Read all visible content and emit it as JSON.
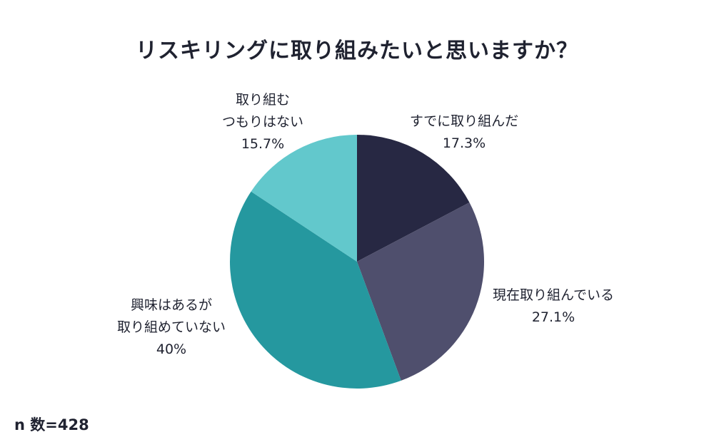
{
  "chart_data": {
    "type": "pie",
    "title": "リスキリングに取り組みたいと思いますか？",
    "slices": [
      {
        "label_lines": [
          "すでに取り組んだ"
        ],
        "value_text": "17.3%",
        "value": 17.3,
        "color": "#272843"
      },
      {
        "label_lines": [
          "現在取り組んでいる"
        ],
        "value_text": "27.1%",
        "value": 27.1,
        "color": "#4f4f6d"
      },
      {
        "label_lines": [
          "興味はあるが",
          "取り組めていない"
        ],
        "value_text": "40%",
        "value": 40,
        "color": "#25989f"
      },
      {
        "label_lines": [
          "取り組む",
          "つもりはない"
        ],
        "value_text": "15.7%",
        "value": 15.7,
        "color": "#62c8cc"
      }
    ],
    "legend": "none",
    "start_angle": "12 o'clock",
    "direction": "clockwise"
  },
  "footer": {
    "sample_size": "n 数=428"
  }
}
